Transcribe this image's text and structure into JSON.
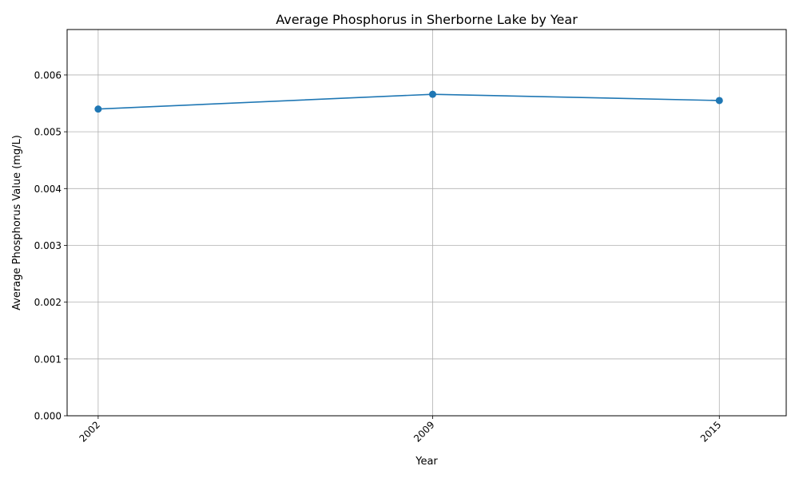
{
  "chart_data": {
    "type": "line",
    "title": "Average Phosphorus in Sherborne Lake by Year",
    "xlabel": "Year",
    "ylabel": "Average Phosphorus Value (mg/L)",
    "x": [
      2002,
      2009,
      2015
    ],
    "x_tick_labels": [
      "2002",
      "2009",
      "2015"
    ],
    "series": [
      {
        "values": [
          0.0054,
          0.00566,
          0.00555
        ],
        "color": "#1f77b4",
        "marker": "circle"
      }
    ],
    "xlim": [
      2001.35,
      2016.4
    ],
    "ylim": [
      0,
      0.0068
    ],
    "y_ticks": [
      0,
      0.001,
      0.002,
      0.003,
      0.004,
      0.005,
      0.006
    ],
    "y_tick_labels": [
      "0.000",
      "0.001",
      "0.002",
      "0.003",
      "0.004",
      "0.005",
      "0.006"
    ],
    "grid": true,
    "legend": "none"
  }
}
